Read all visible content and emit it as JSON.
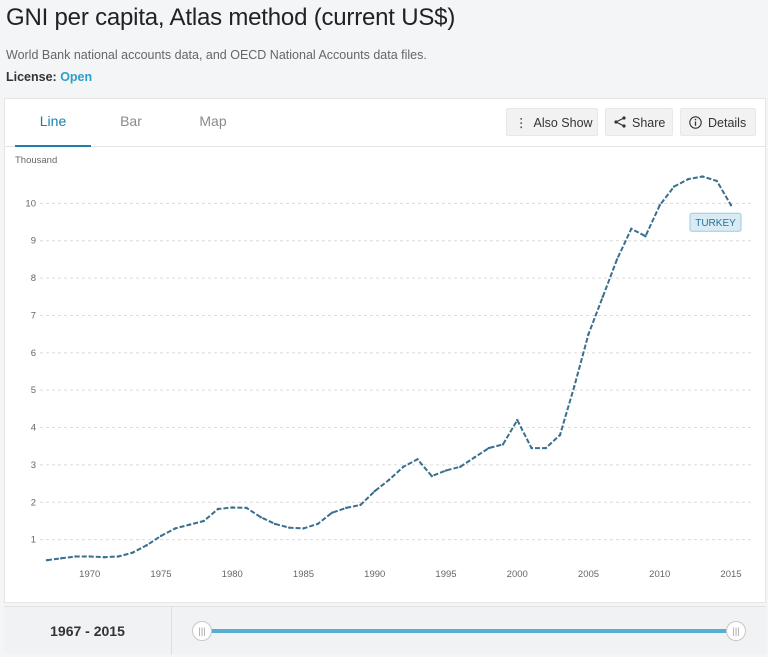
{
  "header": {
    "title": "GNI per capita, Atlas method (current US$)",
    "source": "World Bank national accounts data, and OECD National Accounts data files.",
    "license_label": "License:",
    "license_value": "Open"
  },
  "tabs": [
    {
      "label": "Line",
      "active": true
    },
    {
      "label": "Bar",
      "active": false
    },
    {
      "label": "Map",
      "active": false
    }
  ],
  "toolbar": {
    "also_show": "Also Show",
    "share": "Share",
    "details": "Details"
  },
  "footer": {
    "range_label": "1967 - 2015",
    "range_start": 1967,
    "range_end": 2015
  },
  "colors": {
    "line": "#3b6f8e",
    "accent": "#1b7fa8",
    "slider": "#5aaed0"
  },
  "chart_data": {
    "type": "line",
    "unit_label": "Thousand",
    "series_label": "TURKEY",
    "x_ticks": [
      1970,
      1975,
      1980,
      1985,
      1990,
      1995,
      2000,
      2005,
      2010,
      2015
    ],
    "y_ticks": [
      1,
      2,
      3,
      4,
      5,
      6,
      7,
      8,
      9,
      10
    ],
    "xlim": [
      1967,
      2015
    ],
    "ylim": [
      0,
      11
    ],
    "grid": true,
    "series": [
      {
        "name": "TURKEY",
        "x": [
          1967,
          1968,
          1969,
          1970,
          1971,
          1972,
          1973,
          1974,
          1975,
          1976,
          1977,
          1978,
          1979,
          1980,
          1981,
          1982,
          1983,
          1984,
          1985,
          1986,
          1987,
          1988,
          1989,
          1990,
          1991,
          1992,
          1993,
          1994,
          1995,
          1996,
          1997,
          1998,
          1999,
          2000,
          2001,
          2002,
          2003,
          2004,
          2005,
          2006,
          2007,
          2008,
          2009,
          2010,
          2011,
          2012,
          2013,
          2014,
          2015
        ],
        "values": [
          0.45,
          0.5,
          0.55,
          0.55,
          0.53,
          0.55,
          0.65,
          0.85,
          1.1,
          1.3,
          1.4,
          1.5,
          1.82,
          1.86,
          1.85,
          1.6,
          1.42,
          1.32,
          1.3,
          1.42,
          1.72,
          1.85,
          1.93,
          2.3,
          2.6,
          2.95,
          3.15,
          2.7,
          2.85,
          2.95,
          3.2,
          3.45,
          3.55,
          4.2,
          3.45,
          3.45,
          3.8,
          5.1,
          6.5,
          7.5,
          8.5,
          9.32,
          9.12,
          9.95,
          10.45,
          10.65,
          10.72,
          10.6,
          9.95
        ]
      }
    ]
  }
}
